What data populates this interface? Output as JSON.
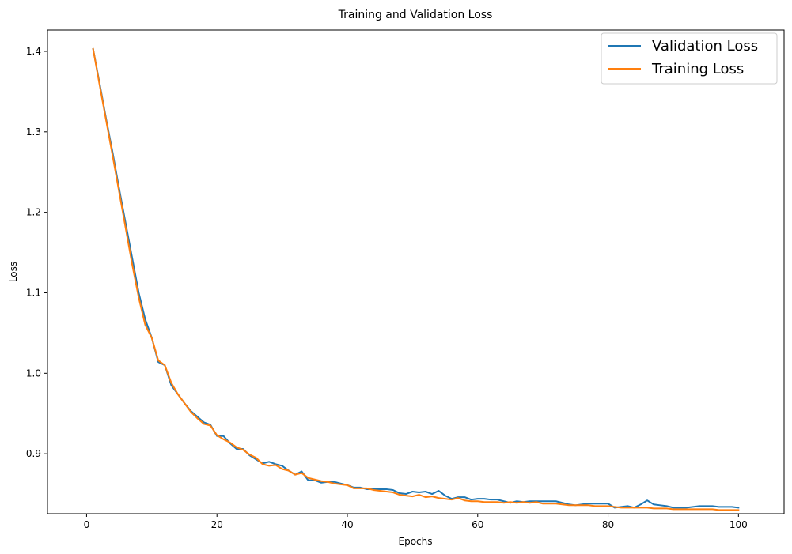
{
  "chart_data": {
    "type": "line",
    "title": "Training and Validation Loss",
    "xlabel": "Epochs",
    "ylabel": "Loss",
    "xlim": [
      -6,
      107
    ],
    "ylim": [
      0.8255,
      1.4265
    ],
    "xticks": [
      0,
      20,
      40,
      60,
      80,
      100
    ],
    "xtick_labels": [
      "0",
      "20",
      "40",
      "60",
      "80",
      "100"
    ],
    "yticks": [
      0.9,
      1.0,
      1.1,
      1.2,
      1.3,
      1.4
    ],
    "ytick_labels": [
      "0.9",
      "1.0",
      "1.1",
      "1.2",
      "1.3",
      "1.4"
    ],
    "grid": false,
    "legend_position": "top-right",
    "series": [
      {
        "name": "Validation Loss",
        "color": "#1f77b4",
        "x": [
          1,
          2,
          3,
          4,
          5,
          6,
          7,
          8,
          9,
          10,
          11,
          12,
          13,
          14,
          15,
          16,
          17,
          18,
          19,
          20,
          21,
          22,
          23,
          24,
          25,
          26,
          27,
          28,
          29,
          30,
          31,
          32,
          33,
          34,
          35,
          36,
          37,
          38,
          39,
          40,
          41,
          42,
          43,
          44,
          45,
          46,
          47,
          48,
          49,
          50,
          51,
          52,
          53,
          54,
          55,
          56,
          57,
          58,
          59,
          60,
          61,
          62,
          63,
          64,
          65,
          66,
          67,
          68,
          69,
          70,
          71,
          72,
          73,
          74,
          75,
          76,
          77,
          78,
          79,
          80,
          81,
          82,
          83,
          84,
          85,
          86,
          87,
          88,
          89,
          90,
          91,
          92,
          93,
          94,
          95,
          96,
          97,
          98,
          99,
          100
        ],
        "values": [
          1.403,
          1.36,
          1.316,
          1.274,
          1.229,
          1.186,
          1.143,
          1.1,
          1.067,
          1.044,
          1.014,
          1.01,
          0.985,
          0.974,
          0.963,
          0.953,
          0.946,
          0.939,
          0.936,
          0.922,
          0.922,
          0.913,
          0.906,
          0.906,
          0.898,
          0.893,
          0.888,
          0.89,
          0.887,
          0.885,
          0.879,
          0.874,
          0.878,
          0.867,
          0.867,
          0.864,
          0.865,
          0.865,
          0.863,
          0.861,
          0.858,
          0.858,
          0.856,
          0.856,
          0.856,
          0.856,
          0.855,
          0.851,
          0.85,
          0.853,
          0.852,
          0.853,
          0.85,
          0.854,
          0.848,
          0.844,
          0.846,
          0.846,
          0.843,
          0.844,
          0.844,
          0.843,
          0.843,
          0.841,
          0.839,
          0.841,
          0.84,
          0.841,
          0.841,
          0.841,
          0.841,
          0.841,
          0.839,
          0.837,
          0.836,
          0.837,
          0.838,
          0.838,
          0.838,
          0.838,
          0.833,
          0.834,
          0.835,
          0.833,
          0.837,
          0.842,
          0.837,
          0.836,
          0.835,
          0.833,
          0.833,
          0.833,
          0.834,
          0.835,
          0.835,
          0.835,
          0.834,
          0.834,
          0.834,
          0.833
        ]
      },
      {
        "name": "Training Loss",
        "color": "#ff7f0e",
        "x": [
          1,
          2,
          3,
          4,
          5,
          6,
          7,
          8,
          9,
          10,
          11,
          12,
          13,
          14,
          15,
          16,
          17,
          18,
          19,
          20,
          21,
          22,
          23,
          24,
          25,
          26,
          27,
          28,
          29,
          30,
          31,
          32,
          33,
          34,
          35,
          36,
          37,
          38,
          39,
          40,
          41,
          42,
          43,
          44,
          45,
          46,
          47,
          48,
          49,
          50,
          51,
          52,
          53,
          54,
          55,
          56,
          57,
          58,
          59,
          60,
          61,
          62,
          63,
          64,
          65,
          66,
          67,
          68,
          69,
          70,
          71,
          72,
          73,
          74,
          75,
          76,
          77,
          78,
          79,
          80,
          81,
          82,
          83,
          84,
          85,
          86,
          87,
          88,
          89,
          90,
          91,
          92,
          93,
          94,
          95,
          96,
          97,
          98,
          99,
          100
        ],
        "values": [
          1.403,
          1.358,
          1.314,
          1.27,
          1.225,
          1.18,
          1.135,
          1.094,
          1.06,
          1.044,
          1.016,
          1.01,
          0.988,
          0.974,
          0.963,
          0.952,
          0.944,
          0.937,
          0.935,
          0.923,
          0.918,
          0.914,
          0.908,
          0.905,
          0.899,
          0.895,
          0.887,
          0.885,
          0.886,
          0.881,
          0.879,
          0.874,
          0.876,
          0.87,
          0.868,
          0.866,
          0.865,
          0.863,
          0.862,
          0.861,
          0.857,
          0.857,
          0.857,
          0.855,
          0.854,
          0.853,
          0.852,
          0.849,
          0.848,
          0.847,
          0.849,
          0.846,
          0.847,
          0.845,
          0.844,
          0.843,
          0.845,
          0.842,
          0.841,
          0.841,
          0.84,
          0.84,
          0.84,
          0.839,
          0.84,
          0.839,
          0.84,
          0.839,
          0.84,
          0.838,
          0.838,
          0.838,
          0.837,
          0.836,
          0.836,
          0.836,
          0.836,
          0.835,
          0.835,
          0.835,
          0.834,
          0.833,
          0.833,
          0.833,
          0.833,
          0.833,
          0.832,
          0.832,
          0.832,
          0.831,
          0.831,
          0.831,
          0.831,
          0.831,
          0.831,
          0.831,
          0.83,
          0.83,
          0.83,
          0.83
        ]
      }
    ]
  }
}
